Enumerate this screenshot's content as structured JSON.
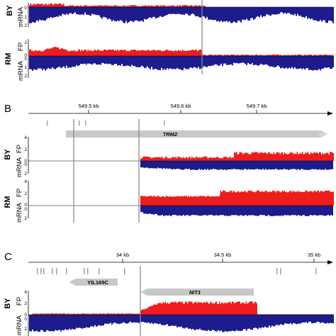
{
  "colors": {
    "fp": "#ee1c1c",
    "mrna": "#1c1c8c",
    "gene_arrow": "#c8c8c8",
    "feature": "#a0a0a0",
    "boundary": "#8c8c8c",
    "axis": "#000000"
  },
  "chart_data": [
    {
      "panel": "",
      "type": "area",
      "tracks": [
        {
          "strain": "BY",
          "series": [
            {
              "name": "mRNA",
              "y_ticks": [
                "0",
                "1",
                "2"
              ]
            }
          ]
        },
        {
          "strain": "RM",
          "series": [
            {
              "name": "FP",
              "y_ticks": [
                "2",
                "0"
              ]
            },
            {
              "name": "mRNA",
              "y_ticks": [
                "0",
                "1",
                "2"
              ]
            }
          ]
        }
      ]
    },
    {
      "panel": "B",
      "type": "area",
      "x_axis": {
        "unit": "kb",
        "ticks": [
          "549.5 kb",
          "549.6 kb",
          "549.7 kb"
        ]
      },
      "genes": [
        {
          "name": "TRM2",
          "strand": "+"
        }
      ],
      "tracks": [
        {
          "strain": "BY",
          "series": [
            {
              "name": "FP",
              "y_ticks": [
                "4",
                "2",
                "0"
              ]
            },
            {
              "name": "mRNA",
              "y_ticks": [
                "0",
                "2"
              ]
            }
          ]
        },
        {
          "strain": "RM",
          "series": [
            {
              "name": "FP",
              "y_ticks": [
                "4",
                "2",
                "0"
              ]
            },
            {
              "name": "mRNA",
              "y_ticks": [
                "0",
                "2"
              ]
            }
          ]
        }
      ]
    },
    {
      "panel": "C",
      "type": "area",
      "x_axis": {
        "unit": "kb",
        "ticks": [
          "34 kb",
          "34.5 kb",
          "35 kb"
        ]
      },
      "genes": [
        {
          "name": "YIL165C",
          "strand": "-"
        },
        {
          "name": "NIT1",
          "strand": "-"
        }
      ],
      "tracks": [
        {
          "strain": "BY",
          "series": [
            {
              "name": "FP",
              "y_ticks": [
                "4",
                "2",
                "0"
              ]
            },
            {
              "name": "mRNA",
              "y_ticks": [
                "0",
                "2"
              ]
            }
          ]
        }
      ]
    }
  ]
}
